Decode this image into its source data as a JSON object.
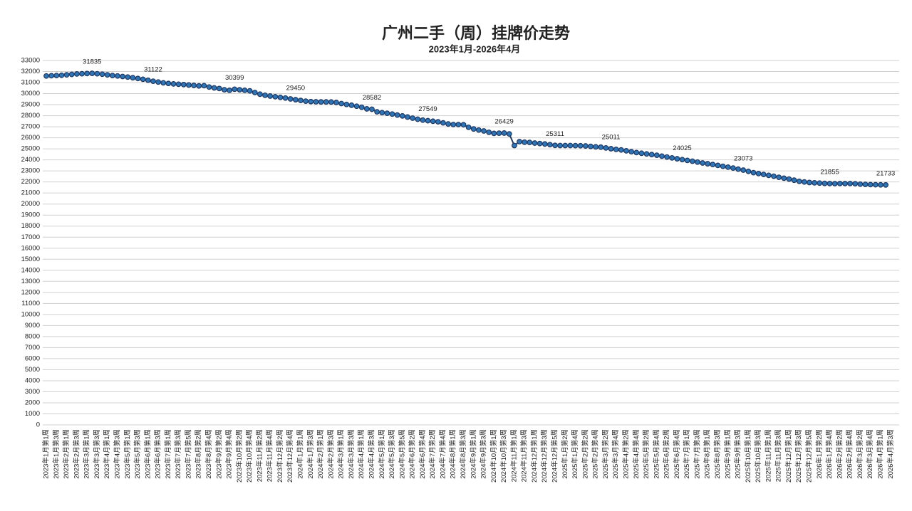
{
  "chart_data": {
    "type": "line",
    "title": "广州二手（周）挂牌价走势",
    "subtitle": "2023年1月-2026年4月",
    "categories": [
      "2023年1月第1周",
      null,
      "2023年1月第3周",
      null,
      "2023年2月第1周",
      null,
      "2023年2月第3周",
      null,
      "2023年3月第1周",
      null,
      "2023年3月第3周",
      null,
      "2023年4月第1周",
      null,
      "2023年4月第3周",
      null,
      "2023年5月第1周",
      null,
      "2023年5月第3周",
      null,
      "2023年6月第1周",
      null,
      "2023年6月第3周",
      null,
      "2023年7月第1周",
      null,
      "2023年7月第3周",
      null,
      "2023年7月第5周",
      null,
      "2023年8月第2周",
      null,
      "2023年8月第4周",
      null,
      "2023年9月第2周",
      null,
      "2023年9月第4周",
      null,
      "2023年10月第2周",
      null,
      "2023年10月第4周",
      null,
      "2023年11月第2周",
      null,
      "2023年11月第4周",
      null,
      "2023年12月第2周",
      null,
      "2023年12月第4周",
      null,
      "2024年1月第1周",
      null,
      "2024年1月第3周",
      null,
      "2024年2月第1周",
      null,
      "2024年2月第3周",
      null,
      "2024年3月第1周",
      null,
      "2024年3月第3周",
      null,
      "2024年4月第1周",
      null,
      "2024年4月第3周",
      null,
      "2024年5月第1周",
      null,
      "2024年5月第3周",
      null,
      "2024年5月第5周",
      null,
      "2024年6月第2周",
      null,
      "2024年6月第4周",
      null,
      "2024年7月第2周",
      null,
      "2024年7月第4周",
      null,
      "2024年8月第1周",
      null,
      "2024年8月第3周",
      null,
      "2024年9月第1周",
      null,
      "2024年9月第3周",
      null,
      "2024年10月第1周",
      null,
      "2024年10月第3周",
      null,
      "2024年11月第1周",
      null,
      "2024年11月第3周",
      null,
      "2024年12月第1周",
      null,
      "2024年12月第3周",
      null,
      "2024年12月第5周",
      null,
      "2025年1月第2周",
      null,
      "2025年1月第4周",
      null,
      "2025年2月第2周",
      null,
      "2025年2月第4周",
      null,
      "2025年3月第2周",
      null,
      "2025年3月第4周",
      null,
      "2025年4月第2周",
      null,
      "2025年4月第4周",
      null,
      "2025年5月第2周",
      null,
      "2025年5月第4周",
      null,
      "2025年6月第2周",
      null,
      "2025年6月第4周",
      null,
      "2025年7月第1周",
      null,
      "2025年7月第3周",
      null,
      "2025年8月第1周",
      null,
      "2025年8月第3周",
      null,
      "2025年9月第1周",
      null,
      "2025年9月第3周",
      null,
      "2025年10月第1周",
      null,
      "2025年10月第3周",
      null,
      "2025年11月第1周",
      null,
      "2025年11月第3周",
      null,
      "2025年12月第1周",
      null,
      "2025年12月第3周",
      null,
      "2025年12月第5周",
      null,
      "2026年1月第2周",
      null,
      "2026年1月第4周",
      null,
      "2026年2月第2周",
      null,
      "2026年2月第4周",
      null,
      "2026年3月第2周",
      null,
      "2026年3月第4周",
      null,
      "2026年4月第1周",
      null,
      "2026年4月第3周"
    ],
    "values": [
      31600,
      31620,
      31640,
      31660,
      31700,
      31740,
      31780,
      31800,
      31820,
      31835,
      31800,
      31760,
      31700,
      31640,
      31600,
      31550,
      31500,
      31440,
      31370,
      31300,
      31210,
      31122,
      31050,
      30980,
      30920,
      30880,
      30850,
      30820,
      30780,
      30740,
      30700,
      30720,
      30600,
      30520,
      30460,
      30350,
      30300,
      30399,
      30350,
      30300,
      30250,
      30100,
      29950,
      29850,
      29780,
      29720,
      29660,
      29600,
      29520,
      29450,
      29380,
      29320,
      29280,
      29260,
      29250,
      29250,
      29240,
      29200,
      29100,
      29020,
      28950,
      28860,
      28760,
      28620,
      28582,
      28350,
      28280,
      28220,
      28150,
      28060,
      27980,
      27880,
      27780,
      27680,
      27600,
      27549,
      27500,
      27450,
      27350,
      27250,
      27200,
      27200,
      27180,
      26950,
      26800,
      26700,
      26620,
      26500,
      26400,
      26420,
      26429,
      26350,
      25300,
      25650,
      25600,
      25580,
      25520,
      25480,
      25440,
      25380,
      25311,
      25300,
      25300,
      25300,
      25290,
      25280,
      25260,
      25220,
      25180,
      25150,
      25080,
      25011,
      24950,
      24900,
      24820,
      24740,
      24660,
      24600,
      24540,
      24480,
      24420,
      24340,
      24260,
      24180,
      24100,
      24025,
      23950,
      23880,
      23800,
      23720,
      23650,
      23580,
      23500,
      23420,
      23340,
      23260,
      23160,
      23073,
      22960,
      22840,
      22760,
      22680,
      22600,
      22520,
      22420,
      22340,
      22260,
      22160,
      22060,
      22000,
      21950,
      21920,
      21900,
      21870,
      21855,
      21850,
      21860,
      21860,
      21860,
      21840,
      21800,
      21780,
      21760,
      21750,
      21740,
      21733,
      null
    ],
    "value_labels": [
      null,
      null,
      null,
      null,
      null,
      null,
      null,
      null,
      null,
      "31835",
      null,
      null,
      null,
      null,
      null,
      null,
      null,
      null,
      null,
      null,
      null,
      "31122",
      null,
      null,
      null,
      null,
      null,
      null,
      null,
      null,
      null,
      null,
      null,
      null,
      null,
      null,
      null,
      "30399",
      null,
      null,
      null,
      null,
      null,
      null,
      null,
      null,
      null,
      null,
      null,
      "29450",
      null,
      null,
      null,
      null,
      null,
      null,
      null,
      null,
      null,
      null,
      null,
      null,
      null,
      null,
      "28582",
      null,
      null,
      null,
      null,
      null,
      null,
      null,
      null,
      null,
      null,
      "27549",
      null,
      null,
      null,
      null,
      null,
      null,
      null,
      null,
      null,
      null,
      null,
      null,
      null,
      null,
      "26429",
      null,
      null,
      null,
      null,
      null,
      null,
      null,
      null,
      null,
      "25311",
      null,
      null,
      null,
      null,
      null,
      null,
      null,
      null,
      null,
      null,
      "25011",
      null,
      null,
      null,
      null,
      null,
      null,
      null,
      null,
      null,
      null,
      null,
      null,
      null,
      "24025",
      null,
      null,
      null,
      null,
      null,
      null,
      null,
      null,
      null,
      null,
      null,
      "23073",
      null,
      null,
      null,
      null,
      null,
      null,
      null,
      null,
      null,
      null,
      null,
      null,
      null,
      null,
      null,
      null,
      "21855",
      null,
      null,
      null,
      null,
      null,
      null,
      null,
      null,
      null,
      null,
      "21733",
      null
    ],
    "color": "#1f3864",
    "marker_color": "#2e75b6",
    "title_color": "#c00000",
    "ylim": [
      0,
      33000
    ],
    "yticks": [
      0,
      1000,
      2000,
      3000,
      4000,
      5000,
      6000,
      7000,
      8000,
      9000,
      10000,
      11000,
      12000,
      13000,
      14000,
      15000,
      16000,
      17000,
      18000,
      19000,
      20000,
      21000,
      22000,
      23000,
      24000,
      25000,
      26000,
      27000,
      28000,
      29000,
      30000,
      31000,
      32000,
      33000
    ],
    "grid": true
  }
}
